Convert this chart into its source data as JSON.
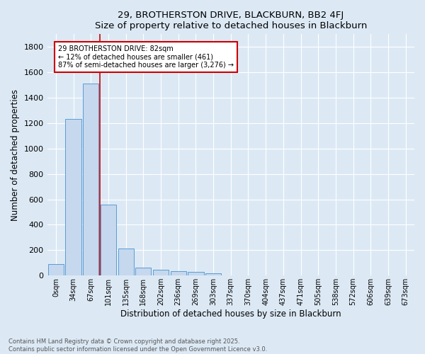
{
  "title": "29, BROTHERSTON DRIVE, BLACKBURN, BB2 4FJ",
  "subtitle": "Size of property relative to detached houses in Blackburn",
  "xlabel": "Distribution of detached houses by size in Blackburn",
  "ylabel": "Number of detached properties",
  "bar_color": "#c5d8ed",
  "bar_edge_color": "#5b9bd5",
  "background_color": "#dce9f5",
  "categories": [
    "0sqm",
    "34sqm",
    "67sqm",
    "101sqm",
    "135sqm",
    "168sqm",
    "202sqm",
    "236sqm",
    "269sqm",
    "303sqm",
    "337sqm",
    "370sqm",
    "404sqm",
    "437sqm",
    "471sqm",
    "505sqm",
    "538sqm",
    "572sqm",
    "606sqm",
    "639sqm",
    "673sqm"
  ],
  "values": [
    90,
    1235,
    1510,
    560,
    210,
    65,
    45,
    35,
    28,
    15,
    0,
    0,
    0,
    0,
    0,
    0,
    0,
    0,
    0,
    0,
    0
  ],
  "ylim": [
    0,
    1900
  ],
  "yticks": [
    0,
    200,
    400,
    600,
    800,
    1000,
    1200,
    1400,
    1600,
    1800
  ],
  "vline_x": 2.5,
  "annotation_title": "29 BROTHERSTON DRIVE: 82sqm",
  "annotation_line1": "← 12% of detached houses are smaller (461)",
  "annotation_line2": "87% of semi-detached houses are larger (3,276) →",
  "annotation_color": "#cc0000",
  "footer_line1": "Contains HM Land Registry data © Crown copyright and database right 2025.",
  "footer_line2": "Contains public sector information licensed under the Open Government Licence v3.0."
}
